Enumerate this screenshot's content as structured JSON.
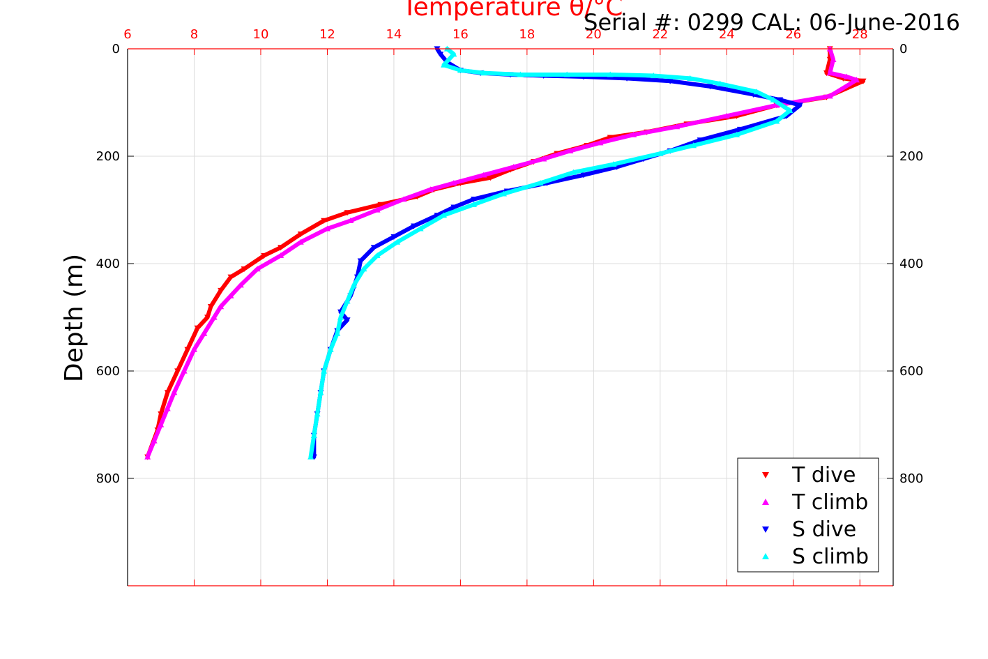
{
  "serial_text": "Serial #: 0299 CAL: 06-June-2016",
  "chart_data": {
    "type": "scatter",
    "title": "",
    "xlabel": "Temperature θ/°C",
    "ylabel": "Depth (m)",
    "xlim": [
      6,
      29
    ],
    "ylim": [
      0,
      1000
    ],
    "y_reversed": true,
    "x_ticks": [
      6,
      8,
      10,
      12,
      14,
      16,
      18,
      20,
      22,
      24,
      26,
      28
    ],
    "y_ticks": [
      0,
      200,
      400,
      600,
      800
    ],
    "grid": true,
    "legend_position": "bottom-right",
    "colors": {
      "x_axis": "#ff0000",
      "t_dive": "#ff0000",
      "t_climb": "#ff00ff",
      "s_dive": "#0000ff",
      "s_climb": "#00ffff"
    },
    "series": [
      {
        "name": "T dive",
        "marker": "triangle-down",
        "color": "#ff0000",
        "x": [
          27.1,
          27.1,
          27.0,
          27.5,
          28.1,
          27.0,
          25.5,
          24.3,
          22.8,
          21.6,
          20.5,
          19.8,
          18.9,
          18.2,
          17.5,
          16.9,
          16.0,
          15.2,
          14.7,
          13.6,
          12.6,
          11.9,
          11.2,
          10.6,
          10.1,
          9.5,
          9.1,
          8.8,
          8.5,
          8.4,
          8.1,
          7.8,
          7.5,
          7.2,
          7.0,
          6.9,
          6.6
        ],
        "y": [
          0,
          20,
          45,
          55,
          60,
          90,
          105,
          125,
          140,
          155,
          165,
          180,
          195,
          210,
          225,
          240,
          250,
          262,
          275,
          290,
          305,
          320,
          345,
          370,
          385,
          410,
          425,
          450,
          480,
          500,
          520,
          560,
          600,
          640,
          680,
          710,
          760
        ]
      },
      {
        "name": "T climb",
        "marker": "triangle-up",
        "color": "#ff00ff",
        "x": [
          27.1,
          27.2,
          27.1,
          27.6,
          27.9,
          27.1,
          25.5,
          24.0,
          22.5,
          21.2,
          20.2,
          19.3,
          18.5,
          17.6,
          16.7,
          15.8,
          15.1,
          14.3,
          13.5,
          12.7,
          12.0,
          11.2,
          10.6,
          9.9,
          9.4,
          9.1,
          8.8,
          8.6,
          8.3,
          8.0,
          7.7,
          7.4,
          7.2,
          7.0,
          6.8,
          6.6
        ],
        "y": [
          0,
          20,
          45,
          52,
          58,
          88,
          105,
          125,
          145,
          160,
          175,
          190,
          205,
          220,
          235,
          250,
          262,
          280,
          300,
          320,
          335,
          360,
          385,
          410,
          440,
          460,
          480,
          500,
          530,
          560,
          600,
          640,
          670,
          700,
          730,
          760
        ]
      },
      {
        "name": "S dive",
        "marker": "triangle-down",
        "color": "#0000ff",
        "x": [
          15.3,
          15.4,
          15.6,
          16.0,
          16.6,
          17.5,
          18.5,
          19.7,
          21.0,
          22.3,
          23.5,
          24.8,
          25.6,
          26.2,
          25.8,
          24.4,
          23.2,
          22.3,
          21.5,
          20.7,
          19.7,
          18.6,
          17.4,
          16.4,
          15.8,
          15.3,
          14.6,
          14.0,
          13.4,
          13.0,
          12.9,
          12.7,
          12.4,
          12.6,
          12.3,
          12.1,
          11.9,
          11.8,
          11.7,
          11.6,
          11.6
        ],
        "y": [
          0,
          10,
          25,
          40,
          45,
          48,
          50,
          52,
          55,
          60,
          70,
          85,
          95,
          105,
          125,
          150,
          170,
          190,
          205,
          220,
          235,
          250,
          265,
          280,
          295,
          310,
          330,
          350,
          370,
          395,
          425,
          460,
          490,
          505,
          525,
          560,
          600,
          640,
          680,
          720,
          760
        ]
      },
      {
        "name": "S climb",
        "marker": "triangle-up",
        "color": "#00ffff",
        "x": [
          15.6,
          15.8,
          15.5,
          16.0,
          16.7,
          17.8,
          19.2,
          20.5,
          21.8,
          22.9,
          23.8,
          24.9,
          25.4,
          25.9,
          25.5,
          24.3,
          23.0,
          22.0,
          20.6,
          19.4,
          18.4,
          17.3,
          16.4,
          15.5,
          14.8,
          14.1,
          13.5,
          13.1,
          12.8,
          12.6,
          12.4,
          12.3,
          12.1,
          11.9,
          11.8,
          11.7,
          11.6,
          11.5
        ],
        "y": [
          0,
          10,
          30,
          40,
          45,
          48,
          48,
          48,
          50,
          55,
          65,
          80,
          95,
          115,
          135,
          160,
          180,
          195,
          215,
          230,
          250,
          270,
          290,
          310,
          335,
          360,
          385,
          410,
          440,
          470,
          500,
          530,
          560,
          600,
          640,
          680,
          720,
          760
        ]
      }
    ]
  }
}
